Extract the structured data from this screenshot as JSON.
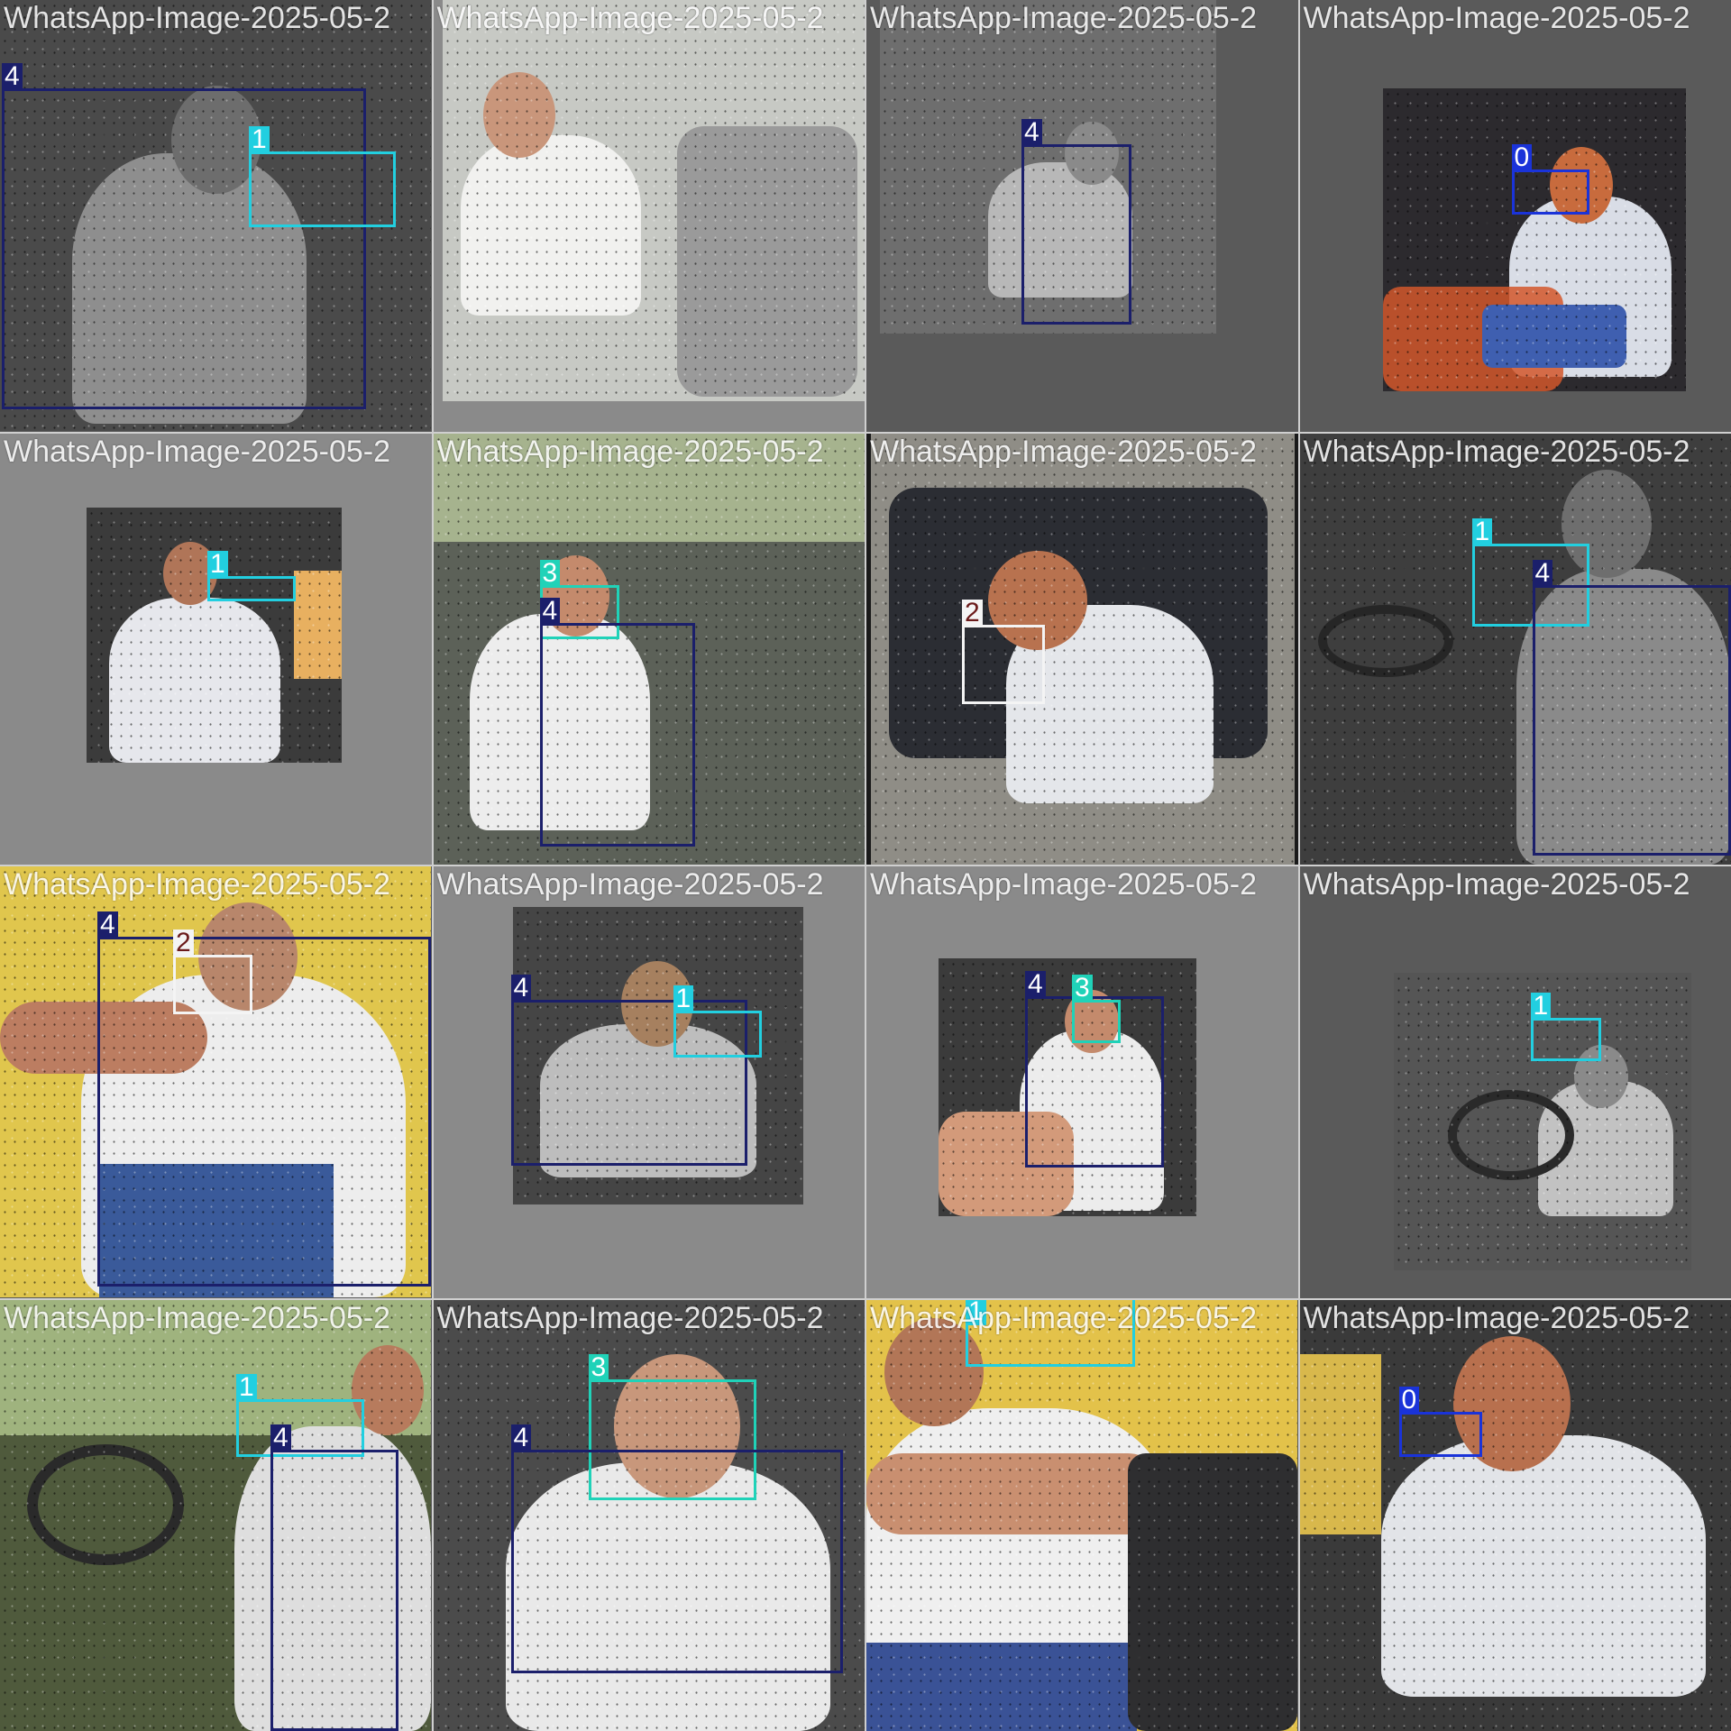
{
  "colors": {
    "class_0": "#1a33d9",
    "class_1": "#22cfe0",
    "class_2": "#f4f4f4",
    "class_3": "#20d2b8",
    "class_4": "#1b1f6b"
  },
  "tiles": [
    {
      "title": "WhatsApp-Image-2025-05-2",
      "boxes": [
        {
          "label": "4"
        },
        {
          "label": "1"
        }
      ]
    },
    {
      "title": "WhatsApp-Image-2025-05-2",
      "boxes": []
    },
    {
      "title": "WhatsApp-Image-2025-05-2",
      "boxes": [
        {
          "label": "4"
        }
      ]
    },
    {
      "title": "WhatsApp-Image-2025-05-2",
      "boxes": [
        {
          "label": "0"
        }
      ]
    },
    {
      "title": "WhatsApp-Image-2025-05-2",
      "boxes": [
        {
          "label": "1"
        }
      ]
    },
    {
      "title": "WhatsApp-Image-2025-05-2",
      "boxes": [
        {
          "label": "3"
        },
        {
          "label": "4"
        }
      ]
    },
    {
      "title": "WhatsApp-Image-2025-05-2",
      "boxes": [
        {
          "label": "2"
        }
      ]
    },
    {
      "title": "WhatsApp-Image-2025-05-2",
      "boxes": [
        {
          "label": "1"
        },
        {
          "label": "4"
        }
      ]
    },
    {
      "title": "WhatsApp-Image-2025-05-2",
      "boxes": [
        {
          "label": "4"
        },
        {
          "label": "2"
        }
      ]
    },
    {
      "title": "WhatsApp-Image-2025-05-2",
      "boxes": [
        {
          "label": "4"
        },
        {
          "label": "1"
        }
      ]
    },
    {
      "title": "WhatsApp-Image-2025-05-2",
      "boxes": [
        {
          "label": "4"
        },
        {
          "label": "3"
        }
      ]
    },
    {
      "title": "WhatsApp-Image-2025-05-2",
      "boxes": [
        {
          "label": "1"
        }
      ]
    },
    {
      "title": "WhatsApp-Image-2025-05-2",
      "boxes": [
        {
          "label": "1"
        },
        {
          "label": "4"
        }
      ]
    },
    {
      "title": "WhatsApp-Image-2025-05-2",
      "boxes": [
        {
          "label": "3"
        },
        {
          "label": "4"
        }
      ]
    },
    {
      "title": "WhatsApp-Image-2025-05-2",
      "boxes": [
        {
          "label": "1"
        }
      ]
    },
    {
      "title": "WhatsApp-Image-2025-05-2",
      "boxes": [
        {
          "label": "0"
        }
      ]
    }
  ]
}
